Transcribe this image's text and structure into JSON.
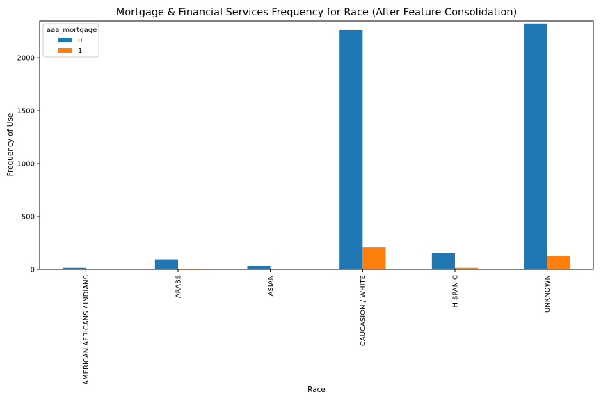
{
  "chart_data": {
    "type": "bar",
    "title": "Mortgage & Financial Services Frequency for Race (After Feature Consolidation)",
    "xlabel": "Race",
    "ylabel": "Frequency of Use",
    "categories": [
      "AMERICAN AFRICANS / INDIANS",
      "ARABS",
      "ASIAN",
      "CAUCASION / WHITE",
      "HISPANIC",
      "UNKNOWN"
    ],
    "series": [
      {
        "name": "0",
        "values": [
          15,
          95,
          33,
          2265,
          155,
          2325
        ],
        "color": "#1f77b4"
      },
      {
        "name": "1",
        "values": [
          0,
          5,
          0,
          210,
          15,
          125
        ],
        "color": "#ff7f0e"
      }
    ],
    "ylim": [
      0,
      2350
    ],
    "yticks": [
      0,
      500,
      1000,
      1500,
      2000
    ],
    "legend": {
      "title": "aaa_mortgage",
      "position": "top-left"
    },
    "grid": false
  }
}
